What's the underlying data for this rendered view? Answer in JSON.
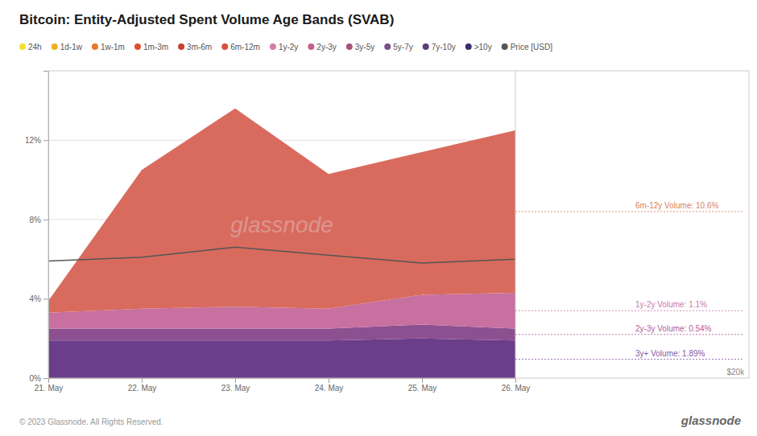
{
  "chart_data": {
    "type": "area",
    "stacked": true,
    "title": "Bitcoin: Entity-Adjusted Spent Volume Age Bands (SVAB)",
    "categories": [
      "21. May",
      "22. May",
      "23. May",
      "24. May",
      "25. May",
      "26. May"
    ],
    "ylim": [
      0,
      0.155
    ],
    "yticks": [
      {
        "value": 0,
        "label": "0%"
      },
      {
        "value": 0.04,
        "label": "4%"
      },
      {
        "value": 0.08,
        "label": "8%"
      },
      {
        "value": 0.12,
        "label": "12%"
      }
    ],
    "grid": true,
    "series": [
      {
        "color": "#6b3d8a",
        "values": [
          0.019,
          0.019,
          0.019,
          0.019,
          0.02,
          0.019
        ]
      },
      {
        "color": "#8c5090",
        "values": [
          0.006,
          0.006,
          0.006,
          0.006,
          0.007,
          0.006
        ]
      },
      {
        "color": "#c870a0",
        "values": [
          0.008,
          0.01,
          0.011,
          0.01,
          0.015,
          0.018
        ]
      },
      {
        "color": "#d96b5e",
        "values": [
          0.006,
          0.07,
          0.1,
          0.068,
          0.072,
          0.082
        ]
      },
      {
        "type": "line",
        "color": "#555555",
        "values": [
          0.059,
          0.061,
          0.066,
          0.062,
          0.058,
          0.06
        ]
      }
    ],
    "legend_items": [
      {
        "label": "24h",
        "color": "#f5e030"
      },
      {
        "label": "1d-1w",
        "color": "#f0b020"
      },
      {
        "label": "1w-1m",
        "color": "#e87828"
      },
      {
        "label": "1m-3m",
        "color": "#e05030"
      },
      {
        "label": "3m-6m",
        "color": "#c84030"
      },
      {
        "label": "6m-12m",
        "color": "#d94f3d"
      },
      {
        "label": "1y-2y",
        "color": "#d47fa6"
      },
      {
        "label": "2y-3y",
        "color": "#c45e8a"
      },
      {
        "label": "3y-5y",
        "color": "#a3567a"
      },
      {
        "label": "5y-7y",
        "color": "#7a4f8c"
      },
      {
        "label": "7y-10y",
        "color": "#5c3d7a"
      },
      {
        "label": ">10y",
        "color": "#3d2b6e"
      },
      {
        "label": "Price [USD]",
        "color": "#555555"
      }
    ],
    "annotations": [
      {
        "text": "6m-12y Volume: 10.6%",
        "color": "#d8845a"
      },
      {
        "text": "1y-2y Volume: 1.1%",
        "color": "#cc78a8"
      },
      {
        "text": "2y-3y Volume: 0.54%",
        "color": "#b060a0"
      },
      {
        "text": "3y+ Volume: 1.89%",
        "color": "#8858a8"
      }
    ],
    "watermark": "glassnode",
    "right_label": "$20k",
    "footer_left": "© 2023 Glassnode. All Rights Reserved.",
    "footer_right": "glassnode"
  }
}
